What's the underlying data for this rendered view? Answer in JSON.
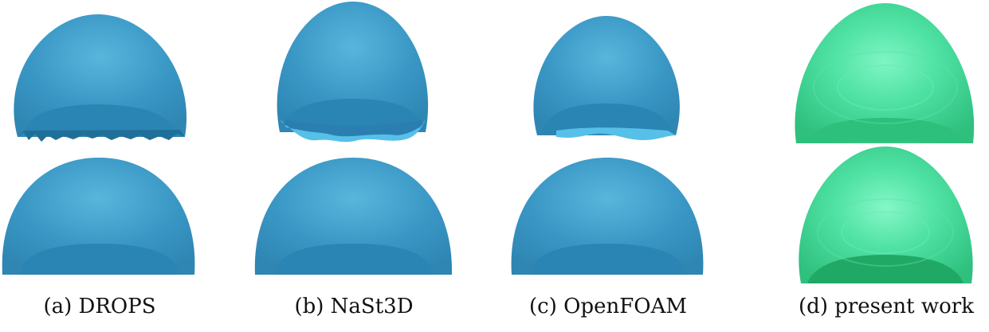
{
  "figure": {
    "colors": {
      "blue_light": "#58b6dc",
      "blue_mid": "#3996c4",
      "blue_dark": "#1f6f99",
      "blue_base": "#2a85b4",
      "green_light": "#7ff5c4",
      "green_mid": "#3fd696",
      "green_dark": "#20a865",
      "green_base": "#2dbf7c"
    },
    "panels": [
      {
        "caption": "(a) DROPS",
        "style": "blue",
        "top_rim": "ragged"
      },
      {
        "caption": "(b) NaSt3D",
        "style": "blue",
        "top_rim": "wavy"
      },
      {
        "caption": "(c) OpenFOAM",
        "style": "blue",
        "top_rim": "ragged-light"
      },
      {
        "caption": "(d) present work",
        "style": "green",
        "top_rim": "smooth"
      }
    ]
  }
}
